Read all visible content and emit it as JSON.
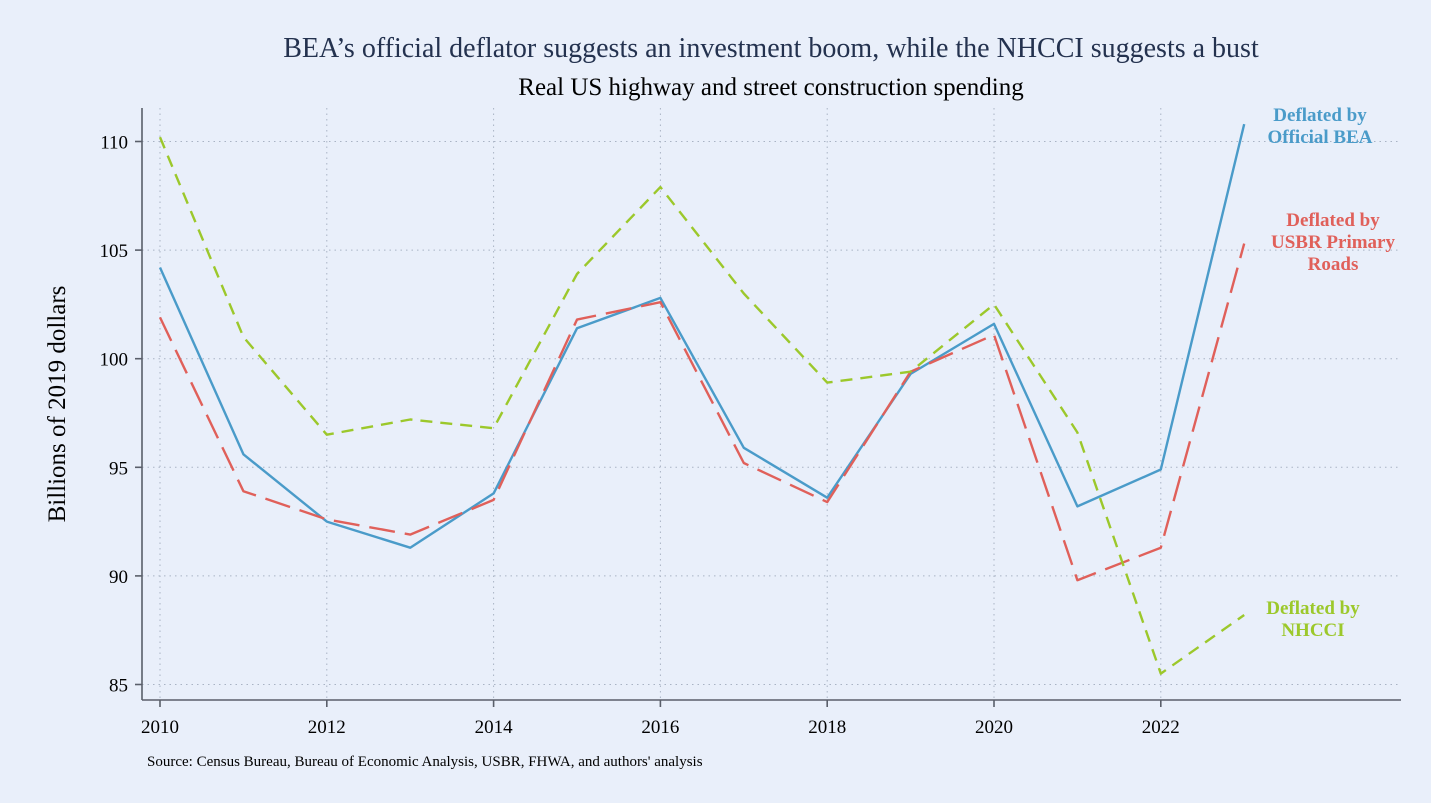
{
  "chart_data": {
    "type": "line",
    "title": "BEA’s official deflator suggests an investment boom, while the NHCCI suggests a bust",
    "subtitle": "Real US highway and street construction spending",
    "ylabel": "Billions of 2019 dollars",
    "xlabel": "",
    "source": "Source: Census Bureau, Bureau of Economic Analysis, USBR, FHWA, and authors' analysis",
    "xlim": [
      2010,
      2024.8
    ],
    "ylim": [
      84.2,
      111.2
    ],
    "x_ticks": [
      2010,
      2012,
      2014,
      2016,
      2018,
      2020,
      2022
    ],
    "y_ticks": [
      85,
      90,
      95,
      100,
      105,
      110
    ],
    "grid": true,
    "x": [
      2010,
      2011,
      2012,
      2013,
      2014,
      2015,
      2016,
      2017,
      2018,
      2019,
      2020,
      2021,
      2022,
      2023
    ],
    "series": [
      {
        "name": "Deflated by Official BEA",
        "label_lines": [
          "Deflated by",
          "Official BEA"
        ],
        "color": "#4a9bc9",
        "dash": "solid",
        "values": [
          104.2,
          95.6,
          92.5,
          91.3,
          93.8,
          101.4,
          102.8,
          95.9,
          93.6,
          99.3,
          101.6,
          93.2,
          94.9,
          110.8
        ]
      },
      {
        "name": "Deflated by USBR Primary Roads",
        "label_lines": [
          "Deflated by",
          "USBR Primary",
          "Roads"
        ],
        "color": "#e0605a",
        "dash": "long-dash",
        "values": [
          101.9,
          93.9,
          92.6,
          91.9,
          93.5,
          101.8,
          102.6,
          95.2,
          93.4,
          99.4,
          101.1,
          89.8,
          91.3,
          105.3
        ]
      },
      {
        "name": "Deflated by NHCCI",
        "label_lines": [
          "Deflated by",
          "NHCCI"
        ],
        "color": "#9cc82b",
        "dash": "short-dash",
        "values": [
          110.2,
          101.0,
          96.5,
          97.2,
          96.8,
          103.9,
          107.9,
          103.0,
          98.9,
          99.4,
          102.5,
          96.6,
          85.5,
          88.2
        ]
      }
    ]
  }
}
